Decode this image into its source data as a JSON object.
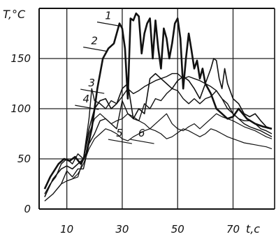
{
  "chart_data": {
    "type": "line",
    "ylabel": "T,°C",
    "xlabel": "t,c",
    "xlim": [
      0,
      85
    ],
    "ylim": [
      0,
      200
    ],
    "x_ticks": [
      10,
      30,
      50,
      70
    ],
    "y_ticks": [
      0,
      50,
      100,
      150
    ],
    "grid": true,
    "series": [
      {
        "name": "1",
        "x": [
          2,
          4,
          7,
          9,
          11,
          13,
          15,
          17,
          19,
          21,
          23,
          25,
          27,
          29,
          30,
          31,
          32,
          33,
          34,
          35,
          36,
          37,
          38,
          39,
          40,
          41,
          42,
          43,
          44,
          45,
          46,
          47,
          48,
          49,
          50,
          51,
          52,
          53,
          54,
          55,
          56,
          57,
          58,
          59,
          60,
          62,
          64,
          66,
          68,
          70,
          72,
          75,
          78,
          81,
          84
        ],
        "y": [
          20,
          32,
          45,
          50,
          48,
          52,
          45,
          55,
          80,
          120,
          150,
          160,
          165,
          185,
          180,
          160,
          110,
          190,
          188,
          195,
          192,
          155,
          175,
          185,
          190,
          150,
          188,
          160,
          140,
          180,
          170,
          150,
          165,
          185,
          190,
          170,
          120,
          150,
          175,
          158,
          140,
          148,
          130,
          140,
          125,
          115,
          100,
          95,
          90,
          92,
          100,
          90,
          85,
          82,
          80
        ]
      },
      {
        "name": "2",
        "x": [
          2,
          5,
          8,
          10,
          12,
          14,
          16,
          18,
          20,
          22,
          24,
          26,
          28,
          30,
          32,
          34,
          36,
          38,
          40,
          42,
          44,
          46,
          48,
          50,
          52,
          54,
          56,
          58,
          60,
          62,
          63,
          64,
          65,
          66,
          67,
          68,
          70,
          72,
          74,
          76,
          78,
          80,
          82,
          84
        ],
        "y": [
          12,
          30,
          40,
          43,
          40,
          45,
          50,
          80,
          100,
          108,
          110,
          100,
          105,
          120,
          125,
          90,
          100,
          95,
          130,
          135,
          130,
          125,
          120,
          128,
          132,
          128,
          120,
          110,
          125,
          140,
          150,
          148,
          130,
          120,
          140,
          125,
          110,
          105,
          95,
          92,
          95,
          88,
          82,
          80
        ]
      },
      {
        "name": "3",
        "x": [
          2,
          4,
          6,
          8,
          10,
          12,
          14,
          16,
          18,
          19,
          20,
          22,
          24,
          26,
          28,
          30,
          32,
          34,
          36,
          38,
          40,
          42,
          44,
          46,
          48,
          50,
          52,
          54,
          56,
          58,
          60,
          62,
          64,
          66,
          68,
          70,
          72,
          74,
          76,
          78,
          80,
          82,
          84
        ],
        "y": [
          15,
          25,
          32,
          45,
          50,
          45,
          55,
          50,
          90,
          120,
          108,
          105,
          100,
          108,
          105,
          112,
          120,
          115,
          118,
          122,
          125,
          128,
          130,
          132,
          135,
          135,
          130,
          132,
          130,
          128,
          125,
          122,
          118,
          110,
          100,
          95,
          90,
          88,
          88,
          85,
          80,
          78,
          75
        ]
      },
      {
        "name": "4",
        "x": [
          2,
          5,
          8,
          10,
          12,
          14,
          16,
          18,
          20,
          22,
          24,
          26,
          28,
          30,
          32,
          34,
          36,
          38,
          40,
          42,
          44,
          46,
          48,
          50,
          52,
          54,
          56,
          58,
          60,
          62,
          64,
          66,
          68,
          70,
          72,
          74,
          76,
          78,
          80,
          82,
          84
        ],
        "y": [
          8,
          15,
          25,
          38,
          32,
          40,
          40,
          65,
          75,
          88,
          90,
          85,
          80,
          108,
          95,
          90,
          88,
          105,
          100,
          110,
          108,
          115,
          120,
          118,
          110,
          105,
          110,
          105,
          110,
          112,
          118,
          110,
          105,
          95,
          90,
          85,
          82,
          80,
          78,
          75,
          72
        ]
      },
      {
        "name": "5",
        "x": [
          10,
          12,
          14,
          16,
          18,
          20,
          22,
          24,
          26,
          28,
          30,
          32,
          34,
          36,
          38,
          40,
          42,
          44,
          46,
          48,
          50,
          52,
          54,
          56,
          58,
          60,
          62,
          64,
          66,
          68,
          70,
          72,
          74,
          76,
          78,
          80,
          82,
          84
        ],
        "y": [
          28,
          30,
          32,
          50,
          75,
          90,
          95,
          90,
          85,
          88,
          90,
          95,
          92,
          88,
          85,
          80,
          85,
          90,
          95,
          85,
          80,
          78,
          82,
          85,
          80,
          85,
          90,
          95,
          92,
          90,
          88,
          85,
          82,
          80,
          78,
          75,
          72,
          70
        ]
      },
      {
        "name": "6",
        "x": [
          8,
          10,
          12,
          14,
          16,
          18,
          20,
          22,
          24,
          26,
          28,
          30,
          32,
          34,
          36,
          38,
          40,
          42,
          44,
          46,
          48,
          50,
          52,
          54,
          56,
          58,
          60,
          62,
          64,
          66,
          68,
          70,
          72,
          74,
          76,
          78,
          80,
          82,
          84
        ],
        "y": [
          25,
          28,
          30,
          35,
          45,
          60,
          70,
          75,
          80,
          78,
          75,
          70,
          68,
          72,
          75,
          78,
          80,
          78,
          75,
          70,
          72,
          76,
          80,
          78,
          75,
          72,
          75,
          80,
          78,
          75,
          72,
          70,
          68,
          66,
          65,
          64,
          63,
          62,
          60
        ]
      }
    ],
    "curve_labels": [
      {
        "text": "1",
        "at": [
          28,
          185
        ]
      },
      {
        "text": "2",
        "at": [
          23,
          160
        ]
      },
      {
        "text": "3",
        "at": [
          22,
          118
        ]
      },
      {
        "text": "4",
        "at": [
          20,
          102
        ]
      },
      {
        "text": "5",
        "at": [
          32,
          68
        ]
      },
      {
        "text": "6",
        "at": [
          40,
          68
        ]
      }
    ]
  }
}
